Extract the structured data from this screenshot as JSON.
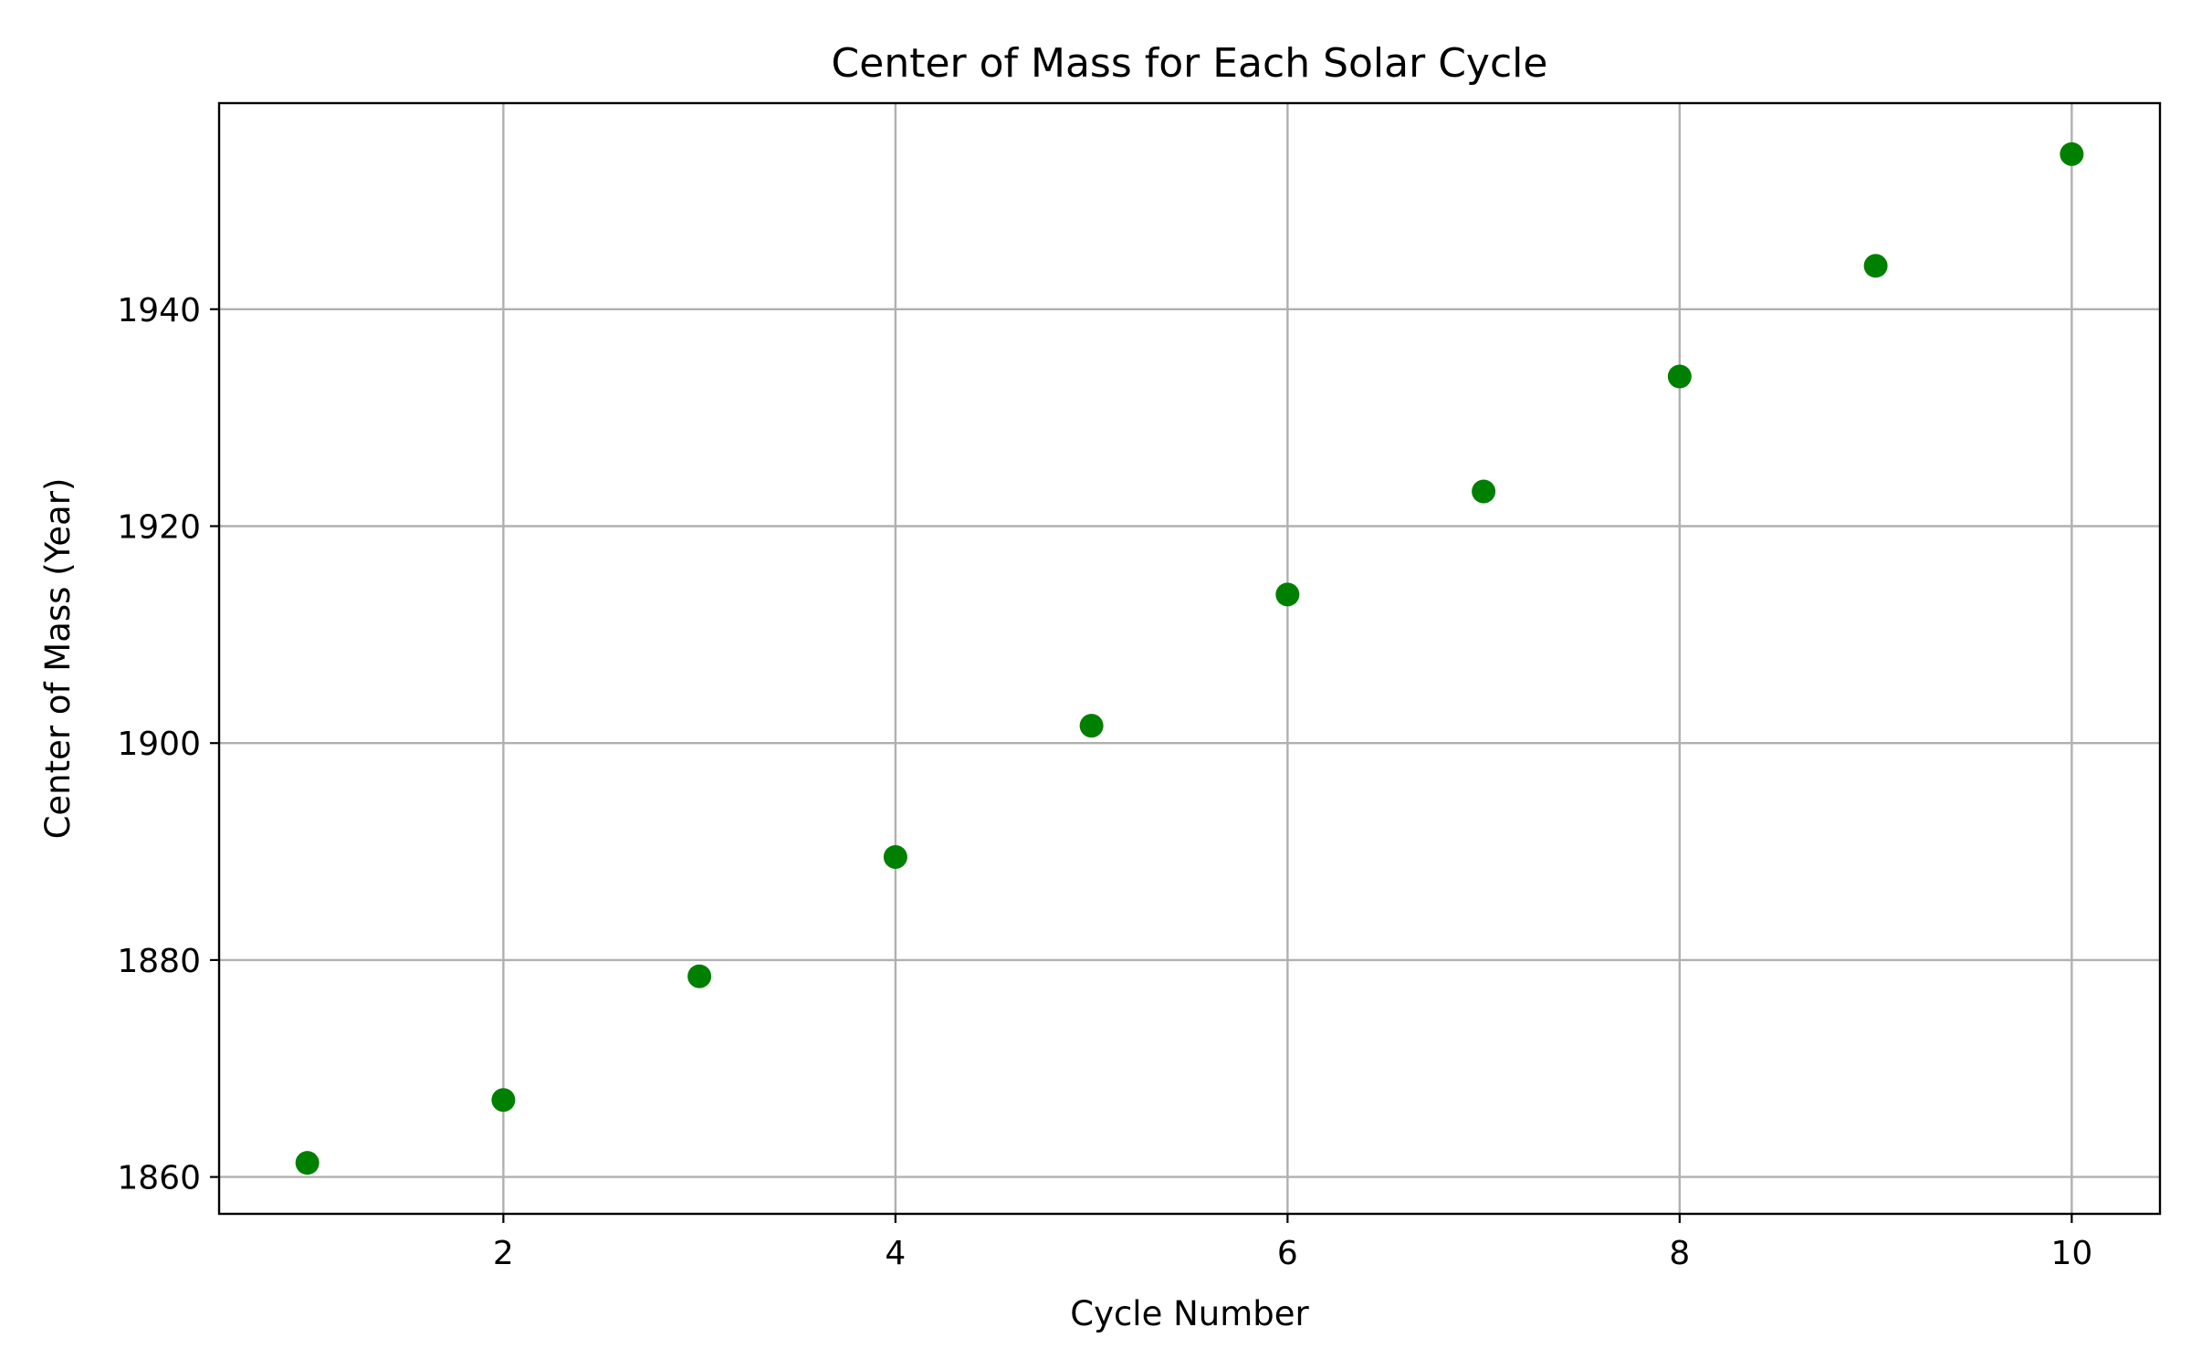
{
  "chart_data": {
    "type": "scatter",
    "title": "Center of Mass for Each Solar Cycle",
    "xlabel": "Cycle Number",
    "ylabel": "Center of Mass (Year)",
    "xlim": [
      0.55,
      10.45
    ],
    "ylim": [
      1856.6,
      1959.0
    ],
    "xticks": [
      2,
      4,
      6,
      8,
      10
    ],
    "xtick_labels": [
      "2",
      "4",
      "6",
      "8",
      "10"
    ],
    "yticks": [
      1860,
      1880,
      1900,
      1920,
      1940
    ],
    "ytick_labels": [
      "1860",
      "1880",
      "1900",
      "1920",
      "1940"
    ],
    "grid": true,
    "legend": "none",
    "marker_color": "#008000",
    "x": [
      1,
      2,
      3,
      4,
      5,
      6,
      7,
      8,
      9,
      10
    ],
    "y": [
      1861.3,
      1867.1,
      1878.5,
      1889.5,
      1901.6,
      1913.7,
      1923.2,
      1933.8,
      1944.0,
      1954.3
    ]
  }
}
